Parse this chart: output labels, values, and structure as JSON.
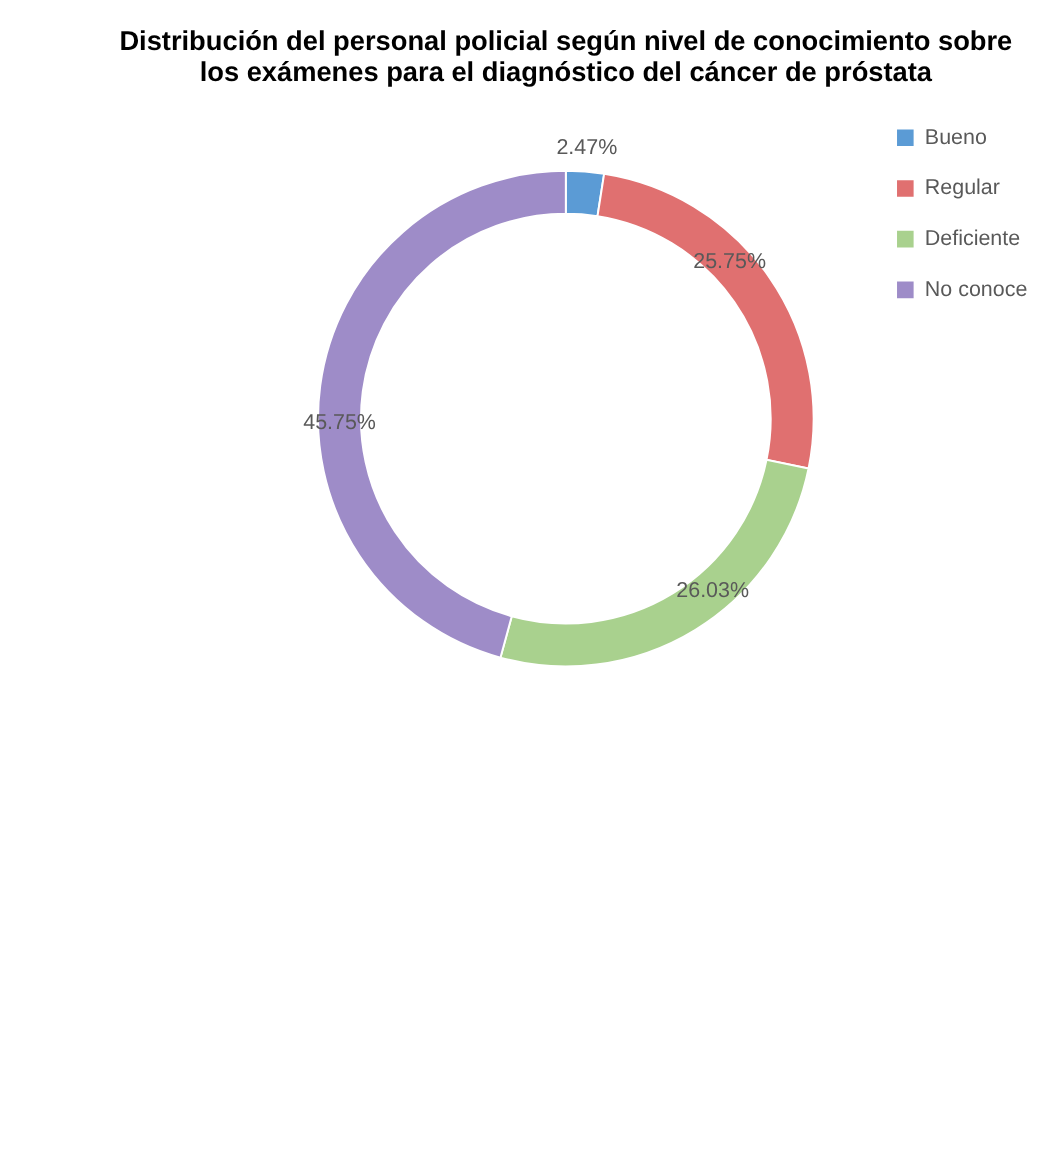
{
  "chart_data": {
    "type": "donut",
    "title": [
      "Distribución del personal policial según nivel de conocimiento sobre",
      "los exámenes para el diagnóstico del cáncer de próstata"
    ],
    "categories": [
      "Bueno",
      "Regular",
      "Deficiente",
      "No conoce"
    ],
    "values": [
      2.47,
      25.75,
      26.03,
      45.75
    ],
    "colors": [
      "#5b9bd5",
      "#e07070",
      "#a9d18e",
      "#9e8cc8"
    ],
    "value_labels": [
      "2.47%",
      "25.75%",
      "26.03%",
      "45.75%"
    ],
    "legend": "right"
  }
}
